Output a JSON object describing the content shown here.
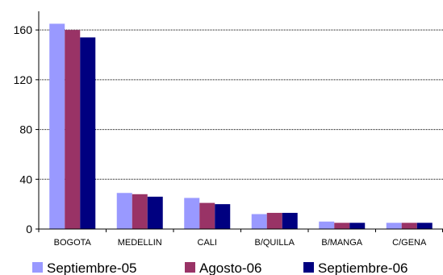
{
  "chart_data": {
    "type": "bar",
    "title": "",
    "xlabel": "",
    "ylabel": "",
    "ylim": [
      0,
      175
    ],
    "yticks": [
      0,
      40,
      80,
      120,
      160
    ],
    "grid": true,
    "legend_position": "bottom",
    "categories": [
      "BOGOTA",
      "MEDELLIN",
      "CALI",
      "B/QUILLA",
      "B/MANGA",
      "C/GENA"
    ],
    "series": [
      {
        "name": "Septiembre-05",
        "color": "#9999ff",
        "values": [
          165,
          29,
          25,
          12,
          6,
          5
        ]
      },
      {
        "name": "Agosto-06",
        "color": "#993366",
        "values": [
          160,
          28,
          21,
          13,
          5,
          5
        ]
      },
      {
        "name": "Septiembre-06",
        "color": "#000080",
        "values": [
          154,
          26,
          20,
          13,
          5,
          5
        ]
      }
    ]
  }
}
